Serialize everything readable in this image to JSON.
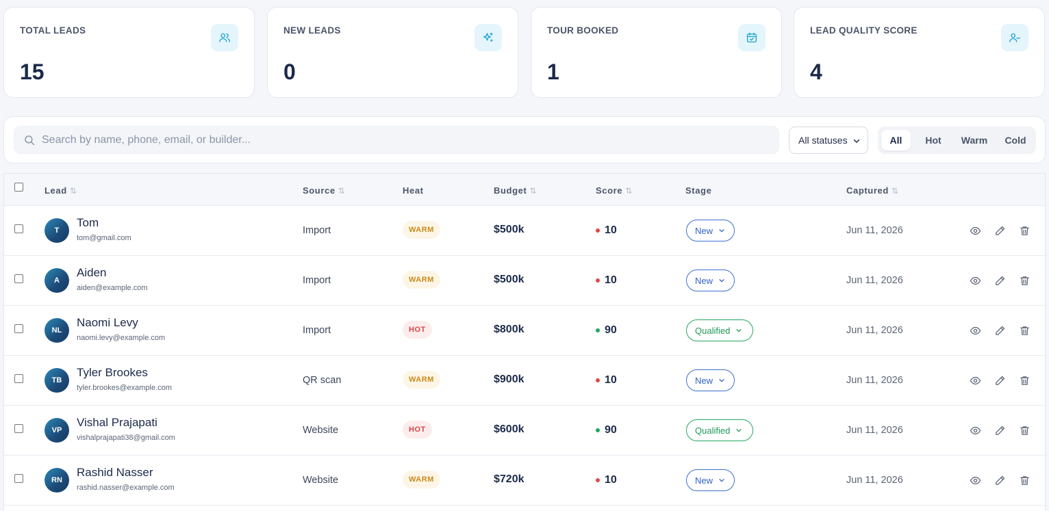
{
  "stats": [
    {
      "label": "TOTAL LEADS",
      "value": "15",
      "icon": "users-icon"
    },
    {
      "label": "NEW LEADS",
      "value": "0",
      "icon": "sparkles-icon"
    },
    {
      "label": "TOUR BOOKED",
      "value": "1",
      "icon": "calendar-check-icon"
    },
    {
      "label": "LEAD QUALITY SCORE",
      "value": "4",
      "icon": "user-minus-icon"
    }
  ],
  "toolbar": {
    "search_placeholder": "Search by name, phone, email, or builder...",
    "status_filter": "All statuses",
    "heat_filters": [
      "All",
      "Hot",
      "Warm",
      "Cold"
    ],
    "active_heat_filter": "All"
  },
  "table": {
    "columns": {
      "lead": "Lead",
      "source": "Source",
      "heat": "Heat",
      "budget": "Budget",
      "score": "Score",
      "stage": "Stage",
      "captured": "Captured"
    },
    "rows": [
      {
        "initials": "T",
        "name": "Tom",
        "email": "tom@gmail.com",
        "source": "Import",
        "heat": "WARM",
        "budget": "$500k",
        "score": "10",
        "stage": "New",
        "captured": "Jun 11, 2026"
      },
      {
        "initials": "A",
        "name": "Aiden",
        "email": "aiden@example.com",
        "source": "Import",
        "heat": "WARM",
        "budget": "$500k",
        "score": "10",
        "stage": "New",
        "captured": "Jun 11, 2026"
      },
      {
        "initials": "NL",
        "name": "Naomi Levy",
        "email": "naomi.levy@example.com",
        "source": "Import",
        "heat": "HOT",
        "budget": "$800k",
        "score": "90",
        "stage": "Qualified",
        "captured": "Jun 11, 2026"
      },
      {
        "initials": "TB",
        "name": "Tyler Brookes",
        "email": "tyler.brookes@example.com",
        "source": "QR scan",
        "heat": "WARM",
        "budget": "$900k",
        "score": "10",
        "stage": "New",
        "captured": "Jun 11, 2026"
      },
      {
        "initials": "VP",
        "name": "Vishal Prajapati",
        "email": "vishalprajapati38@gmail.com",
        "source": "Website",
        "heat": "HOT",
        "budget": "$600k",
        "score": "90",
        "stage": "Qualified",
        "captured": "Jun 11, 2026"
      },
      {
        "initials": "RN",
        "name": "Rashid Nasser",
        "email": "rashid.nasser@example.com",
        "source": "Website",
        "heat": "WARM",
        "budget": "$720k",
        "score": "10",
        "stage": "New",
        "captured": "Jun 11, 2026"
      }
    ]
  },
  "colors": {
    "accent": "#1aa3d1",
    "score_low": "#e04848",
    "score_high": "#1fa85e",
    "stage_new": "#2f62c6",
    "stage_qualified": "#1f9956"
  }
}
